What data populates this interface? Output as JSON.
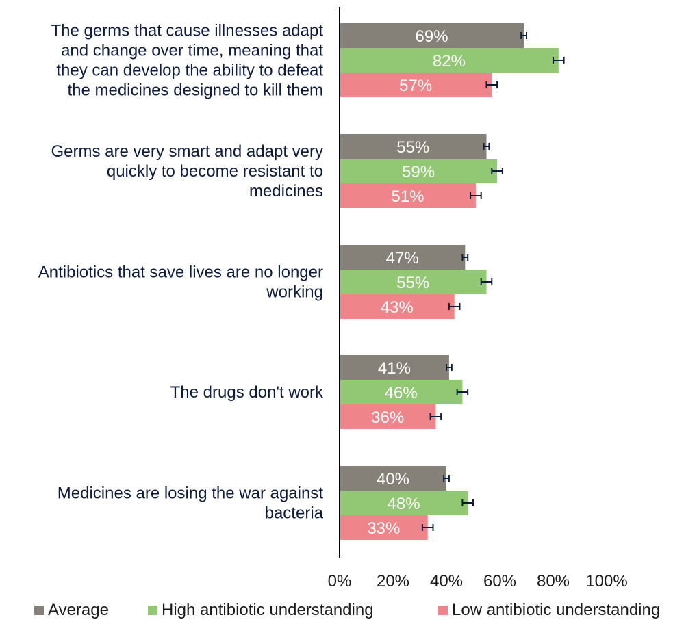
{
  "chart_data": {
    "type": "bar",
    "orientation": "horizontal",
    "categories": [
      [
        "The germs that cause illnesses adapt",
        "and change over time, meaning that",
        "they can develop the ability to defeat",
        "the medicines designed to kill them"
      ],
      [
        "Germs are very smart and adapt very",
        "quickly to become resistant to",
        "medicines"
      ],
      [
        "Antibiotics that save lives are no longer",
        "working"
      ],
      [
        "The drugs don't work"
      ],
      [
        "Medicines are losing the war against",
        "bacteria"
      ]
    ],
    "series": [
      {
        "name": "Average",
        "color": "#868178",
        "values": [
          69,
          55,
          47,
          41,
          40
        ],
        "labels": [
          "69%",
          "55%",
          "47%",
          "41%",
          "40%"
        ],
        "error": [
          1,
          1,
          1,
          1,
          1
        ]
      },
      {
        "name": "High antibiotic understanding",
        "color": "#92c873",
        "values": [
          82,
          59,
          55,
          46,
          48
        ],
        "labels": [
          "82%",
          "59%",
          "55%",
          "46%",
          "48%"
        ],
        "error": [
          2,
          2,
          2,
          2,
          2
        ]
      },
      {
        "name": "Low antibiotic understanding",
        "color": "#ef858a",
        "values": [
          57,
          51,
          43,
          36,
          33
        ],
        "labels": [
          "57%",
          "51%",
          "43%",
          "36%",
          "33%"
        ],
        "error": [
          2,
          2,
          2,
          2,
          2
        ]
      }
    ],
    "xlim": [
      0,
      100
    ],
    "xticks": [
      "0%",
      "20%",
      "40%",
      "60%",
      "80%",
      "100%"
    ],
    "grid": false,
    "legend_position": "bottom",
    "error_bar_color": "#0d1b3e"
  }
}
